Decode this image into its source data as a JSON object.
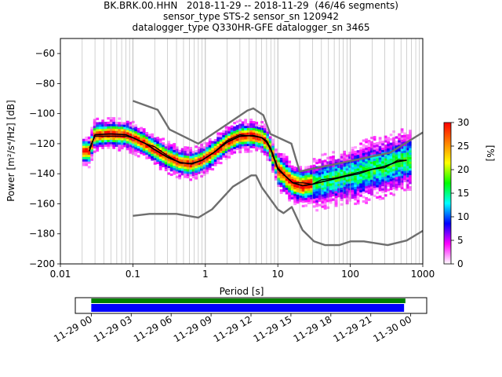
{
  "title_lines": [
    "BK.BRK.00.HHN   2018-11-29 -- 2018-11-29  (46/46 segments)",
    "sensor_type STS-2 sensor_sn 120942",
    "datalogger_type Q330HR-GFE datalogger_sn 3465"
  ],
  "chart_data": {
    "type": "heatmap",
    "title": "BK.BRK.00.HHN   2018-11-29 -- 2018-11-29  (46/46 segments)",
    "xlabel": "Period [s]",
    "ylabel": "Power [m²/s⁴/Hz] [dB]",
    "xscale": "log",
    "xlim": [
      0.01,
      1000
    ],
    "ylim": [
      -200,
      -50
    ],
    "xticks": [
      {
        "v": 0.01,
        "label": "0.01"
      },
      {
        "v": 0.1,
        "label": "0.1"
      },
      {
        "v": 1,
        "label": "1"
      },
      {
        "v": 10,
        "label": "10"
      },
      {
        "v": 100,
        "label": "100"
      },
      {
        "v": 1000,
        "label": "1000"
      }
    ],
    "yticks": [
      -60,
      -80,
      -100,
      -120,
      -140,
      -160,
      -180,
      -200
    ],
    "grid": "vertical",
    "colorbar": {
      "label": "[%]",
      "min": 0,
      "max": 30,
      "ticks": [
        0,
        5,
        10,
        15,
        20,
        25,
        30
      ],
      "colors": [
        "#ffffff",
        "#ff00ff",
        "#0000ff",
        "#00ffff",
        "#00ff00",
        "#ffff00",
        "#ff8000",
        "#ff0000"
      ]
    },
    "nhnm": {
      "name": "NHNM",
      "periods": [
        0.1,
        0.22,
        0.32,
        0.8,
        3.8,
        4.6,
        6.3,
        7.9,
        15.4,
        20,
        354.8,
        1000
      ],
      "db": [
        -91.5,
        -97.4,
        -110.5,
        -120,
        -98,
        -96.5,
        -101,
        -113.5,
        -120,
        -138.5,
        -126,
        -112.5
      ]
    },
    "nlnm": {
      "name": "NLNM",
      "periods": [
        0.1,
        0.17,
        0.4,
        0.8,
        1.24,
        2.4,
        4.3,
        5,
        6,
        10,
        12,
        15.6,
        21.9,
        31.6,
        45,
        70,
        101,
        154,
        328,
        600,
        1000
      ],
      "db": [
        -168,
        -166.7,
        -166.7,
        -169.2,
        -163.7,
        -148.6,
        -141.1,
        -141.1,
        -149,
        -163.8,
        -166.2,
        -162.1,
        -177.5,
        -185,
        -187.5,
        -187.5,
        -185,
        -185,
        -187.5,
        -184.4,
        -178
      ]
    },
    "mean": {
      "name": "mean",
      "periods": [
        0.025,
        0.03,
        0.05,
        0.08,
        0.1,
        0.15,
        0.2,
        0.3,
        0.45,
        0.65,
        0.9,
        1.3,
        2,
        3,
        4.5,
        6,
        7,
        8,
        10,
        13,
        16,
        22,
        30,
        40,
        60,
        90,
        130,
        200,
        300,
        450,
        600
      ],
      "db": [
        -125,
        -114,
        -113.5,
        -114,
        -116,
        -120,
        -124,
        -129,
        -132.5,
        -133.5,
        -131,
        -126,
        -119,
        -115,
        -114.5,
        -116,
        -119,
        -124,
        -137,
        -142,
        -146,
        -148,
        -147,
        -145.5,
        -143.5,
        -141.5,
        -140,
        -137,
        -135,
        -132,
        -131
      ]
    },
    "mode": {
      "name": "mode",
      "periods": [
        0.025,
        0.03,
        0.05,
        0.08,
        0.1,
        0.15,
        0.2,
        0.3,
        0.45,
        0.65,
        0.9,
        1.3,
        2,
        3,
        4.5,
        6,
        7,
        8,
        10,
        13,
        16,
        22,
        30,
        40,
        60,
        90,
        130,
        200,
        300,
        450,
        600
      ],
      "db": [
        -123,
        -115,
        -115,
        -115,
        -116,
        -120,
        -122,
        -128,
        -133,
        -133,
        -131,
        -126,
        -118,
        -114,
        -115,
        -116,
        -118,
        -123,
        -136,
        -142,
        -146,
        -146,
        -147,
        -144,
        -143,
        -141,
        -139,
        -137,
        -136,
        -131,
        -131
      ]
    },
    "coverage": {
      "xlabels": [
        "11-29 00",
        "11-29 03",
        "11-29 06",
        "11-29 09",
        "11-29 12",
        "11-29 15",
        "11-29 18",
        "11-29 21",
        "11-30 00"
      ],
      "hours": [
        0,
        3,
        6,
        9,
        12,
        15,
        18,
        21,
        24
      ],
      "xlim_hours": [
        -1.2,
        25.2
      ],
      "data_bar": {
        "start": 0,
        "end": 23.6,
        "color": "#008000"
      },
      "psd_bar": {
        "start": 0,
        "end": 23.5,
        "color": "#0000ff"
      }
    }
  }
}
